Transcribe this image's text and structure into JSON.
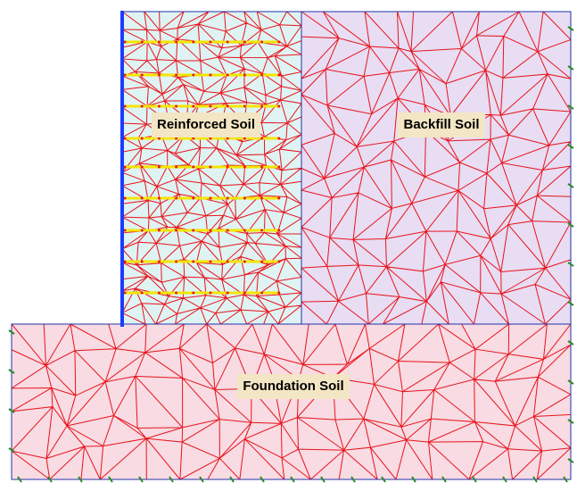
{
  "regions": {
    "reinforced": {
      "label": "Reinforced Soil"
    },
    "backfill": {
      "label": "Backfill Soil"
    },
    "foundation": {
      "label": "Foundation Soil"
    }
  }
}
